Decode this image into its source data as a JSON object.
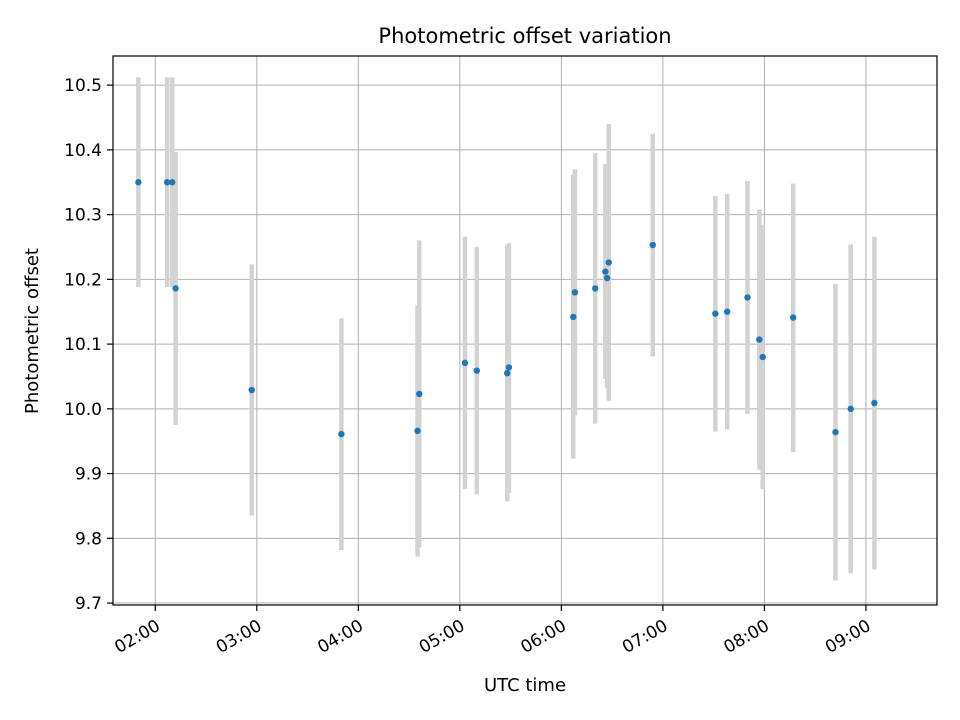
{
  "chart_data": {
    "type": "scatter",
    "title": "Photometric offset variation",
    "xlabel": "UTC time",
    "ylabel": "Photometric offset",
    "x_axis_type": "time",
    "xlim": [
      "01:35",
      "09:42"
    ],
    "ylim": [
      9.697,
      10.545
    ],
    "grid": true,
    "x_ticks": [
      "02:00",
      "03:00",
      "04:00",
      "05:00",
      "06:00",
      "07:00",
      "08:00",
      "09:00"
    ],
    "y_ticks": [
      9.7,
      9.8,
      9.9,
      10.0,
      10.1,
      10.2,
      10.3,
      10.4,
      10.5
    ],
    "y_tick_labels": [
      "9.7",
      "9.8",
      "9.9",
      "10.0",
      "10.1",
      "10.2",
      "10.3",
      "10.4",
      "10.5"
    ],
    "marker_color": "#1f77b4",
    "errorbar_color": "#d3d3d3",
    "points": [
      {
        "time": "01:50",
        "y": 10.35,
        "err_low": 10.188,
        "err_high": 10.512
      },
      {
        "time": "02:07",
        "y": 10.35,
        "err_low": 10.188,
        "err_high": 10.512
      },
      {
        "time": "02:10",
        "y": 10.35,
        "err_low": 10.188,
        "err_high": 10.512
      },
      {
        "time": "02:12",
        "y": 10.186,
        "err_low": 9.975,
        "err_high": 10.397
      },
      {
        "time": "02:57",
        "y": 10.029,
        "err_low": 9.835,
        "err_high": 10.223
      },
      {
        "time": "03:50",
        "y": 9.961,
        "err_low": 9.782,
        "err_high": 10.14
      },
      {
        "time": "04:35",
        "y": 9.966,
        "err_low": 9.772,
        "err_high": 10.16
      },
      {
        "time": "04:36",
        "y": 10.023,
        "err_low": 9.786,
        "err_high": 10.26
      },
      {
        "time": "05:03",
        "y": 10.071,
        "err_low": 9.876,
        "err_high": 10.266
      },
      {
        "time": "05:10",
        "y": 10.059,
        "err_low": 9.868,
        "err_high": 10.25
      },
      {
        "time": "05:28",
        "y": 10.055,
        "err_low": 9.857,
        "err_high": 10.253
      },
      {
        "time": "05:29",
        "y": 10.064,
        "err_low": 9.87,
        "err_high": 10.256
      },
      {
        "time": "06:07",
        "y": 10.142,
        "err_low": 9.923,
        "err_high": 10.362
      },
      {
        "time": "06:08",
        "y": 10.18,
        "err_low": 9.99,
        "err_high": 10.37
      },
      {
        "time": "06:20",
        "y": 10.186,
        "err_low": 9.977,
        "err_high": 10.395
      },
      {
        "time": "06:26",
        "y": 10.212,
        "err_low": 10.046,
        "err_high": 10.378
      },
      {
        "time": "06:27",
        "y": 10.202,
        "err_low": 10.032,
        "err_high": 10.372
      },
      {
        "time": "06:28",
        "y": 10.226,
        "err_low": 10.012,
        "err_high": 10.44
      },
      {
        "time": "06:54",
        "y": 10.253,
        "err_low": 10.081,
        "err_high": 10.425
      },
      {
        "time": "07:31",
        "y": 10.147,
        "err_low": 9.965,
        "err_high": 10.329
      },
      {
        "time": "07:38",
        "y": 10.15,
        "err_low": 9.968,
        "err_high": 10.332
      },
      {
        "time": "07:50",
        "y": 10.172,
        "err_low": 9.992,
        "err_high": 10.352
      },
      {
        "time": "07:57",
        "y": 10.107,
        "err_low": 9.906,
        "err_high": 10.308
      },
      {
        "time": "07:59",
        "y": 10.08,
        "err_low": 9.876,
        "err_high": 10.284
      },
      {
        "time": "08:17",
        "y": 10.141,
        "err_low": 9.933,
        "err_high": 10.348
      },
      {
        "time": "08:42",
        "y": 9.964,
        "err_low": 9.735,
        "err_high": 10.193
      },
      {
        "time": "08:51",
        "y": 10.0,
        "err_low": 9.746,
        "err_high": 10.254
      },
      {
        "time": "09:05",
        "y": 10.009,
        "err_low": 9.752,
        "err_high": 10.266
      }
    ]
  }
}
